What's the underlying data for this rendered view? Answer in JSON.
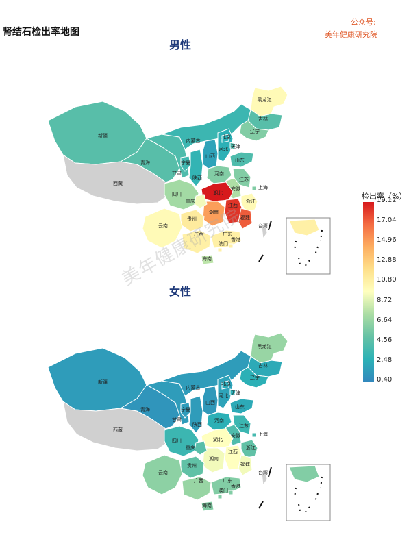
{
  "header": {
    "title": "肾结石检出率地图",
    "account_label": "公众号:",
    "account_name": "美年健康研究院"
  },
  "watermark": "美年健康研究院",
  "legend": {
    "title": "检出率（%）",
    "ticks": [
      "19.12",
      "17.04",
      "14.96",
      "12.88",
      "10.80",
      "8.72",
      "6.64",
      "4.56",
      "2.48",
      "0.40"
    ],
    "min": 0.4,
    "max": 19.12,
    "colors": [
      "#d7191c",
      "#f46d43",
      "#fdae61",
      "#fee08b",
      "#ffffbf",
      "#abdda4",
      "#66c2a5",
      "#2cb2b6",
      "#3288bd"
    ]
  },
  "maps": [
    {
      "title": "男性",
      "regions": [
        {
          "label": "黑龙江",
          "level": 0.52
        },
        {
          "label": "吉林",
          "level": 0.22
        },
        {
          "label": "辽宁",
          "level": 0.3
        },
        {
          "label": "新疆",
          "level": 0.22
        },
        {
          "label": "西藏",
          "level": null
        },
        {
          "label": "青海",
          "level": 0.22
        },
        {
          "label": "甘肃",
          "level": 0.2
        },
        {
          "label": "内蒙古",
          "level": 0.16
        },
        {
          "label": "宁夏",
          "level": 0.17
        },
        {
          "label": "陕西",
          "level": 0.14
        },
        {
          "label": "山西",
          "level": 0.08
        },
        {
          "label": "河北",
          "level": 0.12
        },
        {
          "label": "北京",
          "level": 0.12
        },
        {
          "label": "天津",
          "level": 0.2
        },
        {
          "label": "山东",
          "level": 0.2
        },
        {
          "label": "河南",
          "level": 0.3
        },
        {
          "label": "江苏",
          "level": 0.3
        },
        {
          "label": "安徽",
          "level": 0.38
        },
        {
          "label": "上海",
          "level": 0.3
        },
        {
          "label": "浙江",
          "level": 0.52
        },
        {
          "label": "湖北",
          "level": 1.0
        },
        {
          "label": "湖南",
          "level": 0.78
        },
        {
          "label": "江西",
          "level": 0.96
        },
        {
          "label": "福建",
          "level": 0.9
        },
        {
          "label": "四川",
          "level": 0.36
        },
        {
          "label": "重庆",
          "level": 0.48
        },
        {
          "label": "贵州",
          "level": 0.58
        },
        {
          "label": "云南",
          "level": 0.52
        },
        {
          "label": "广西",
          "level": 0.56
        },
        {
          "label": "广东",
          "level": 0.56
        },
        {
          "label": "澳门",
          "level": 0.56
        },
        {
          "label": "香港",
          "level": 0.56
        },
        {
          "label": "海南",
          "level": 0.4
        },
        {
          "label": "台湾",
          "level": null
        }
      ]
    },
    {
      "title": "女性",
      "regions": [
        {
          "label": "黑龙江",
          "level": 0.34
        },
        {
          "label": "吉林",
          "level": 0.1
        },
        {
          "label": "辽宁",
          "level": 0.12
        },
        {
          "label": "新疆",
          "level": 0.06
        },
        {
          "label": "西藏",
          "level": null
        },
        {
          "label": "青海",
          "level": 0.04
        },
        {
          "label": "甘肃",
          "level": 0.06
        },
        {
          "label": "内蒙古",
          "level": 0.06
        },
        {
          "label": "宁夏",
          "level": 0.06
        },
        {
          "label": "陕西",
          "level": 0.06
        },
        {
          "label": "山西",
          "level": 0.05
        },
        {
          "label": "河北",
          "level": 0.08
        },
        {
          "label": "北京",
          "level": 0.1
        },
        {
          "label": "天津",
          "level": 0.12
        },
        {
          "label": "山东",
          "level": 0.1
        },
        {
          "label": "河南",
          "level": 0.12
        },
        {
          "label": "江苏",
          "level": 0.16
        },
        {
          "label": "安徽",
          "level": 0.2
        },
        {
          "label": "上海",
          "level": 0.18
        },
        {
          "label": "浙江",
          "level": 0.24
        },
        {
          "label": "湖北",
          "level": 0.5
        },
        {
          "label": "湖南",
          "level": 0.48
        },
        {
          "label": "江西",
          "level": 0.5
        },
        {
          "label": "福建",
          "level": 0.48
        },
        {
          "label": "四川",
          "level": 0.16
        },
        {
          "label": "重庆",
          "level": 0.22
        },
        {
          "label": "贵州",
          "level": 0.24
        },
        {
          "label": "云南",
          "level": 0.32
        },
        {
          "label": "广西",
          "level": 0.34
        },
        {
          "label": "广东",
          "level": 0.3
        },
        {
          "label": "澳门",
          "level": 0.3
        },
        {
          "label": "香港",
          "level": 0.3
        },
        {
          "label": "海南",
          "level": 0.3
        },
        {
          "label": "台湾",
          "level": null
        }
      ]
    }
  ]
}
